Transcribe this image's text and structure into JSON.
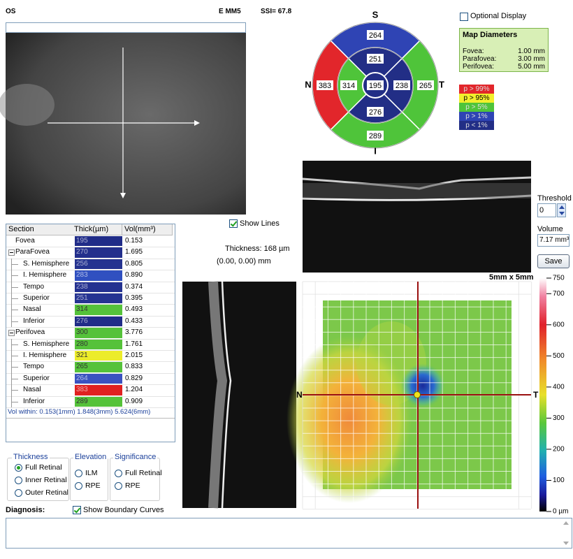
{
  "header": {
    "eye": "OS",
    "scan": "E MM5",
    "ssi": "SSI= 67.8"
  },
  "sector_map": {
    "orientation": [
      "S",
      "N",
      "T",
      "I"
    ],
    "outer": [
      {
        "value": 264,
        "color": "#2f44b4"
      },
      {
        "value": 383,
        "color": "#e2262b"
      },
      {
        "value": 265,
        "color": "#4fc43a"
      },
      {
        "value": 289,
        "color": "#4fc43a"
      }
    ],
    "inner": [
      {
        "value": 251,
        "color": "#222e86"
      },
      {
        "value": 314,
        "color": "#4fc43a"
      },
      {
        "value": 238,
        "color": "#222e86"
      },
      {
        "value": 276,
        "color": "#222e86"
      }
    ],
    "center": {
      "value": 195,
      "color": "#222e86"
    }
  },
  "optional_display": "Optional Display",
  "map_diameters": {
    "title": "Map Diameters",
    "rows": [
      [
        "Fovea:",
        "1.00 mm"
      ],
      [
        "Parafovea:",
        "3.00 mm"
      ],
      [
        "Perifovea:",
        "5.00 mm"
      ]
    ]
  },
  "significance_legend": [
    {
      "label": "p > 99%",
      "color": "#e2262b"
    },
    {
      "label": "p > 95%",
      "color": "#f2ef2c"
    },
    {
      "label": "p > 5%",
      "color": "#4fc43a"
    },
    {
      "label": "p > 1%",
      "color": "#2f44b4"
    },
    {
      "label": "p < 1%",
      "color": "#222e86"
    }
  ],
  "table": {
    "header": [
      "Section",
      "Thick(µm)",
      "Vol(mm³)"
    ],
    "rows": [
      {
        "cells": [
          "Fovea",
          "195",
          "0.153"
        ],
        "color": "#202c88"
      },
      {
        "cells": [
          "ParaFovea",
          "270",
          "1.695"
        ],
        "color": "#232f8c",
        "children": [
          {
            "cells": [
              "S. Hemisphere",
              "256",
              "0.805"
            ],
            "color": "#253390"
          },
          {
            "cells": [
              "I. Hemisphere",
              "283",
              "0.890"
            ],
            "color": "#3050c0"
          },
          {
            "cells": [
              "Tempo",
              "238",
              "0.374"
            ],
            "color": "#243190"
          },
          {
            "cells": [
              "Superior",
              "251",
              "0.395"
            ],
            "color": "#263492"
          },
          {
            "cells": [
              "Nasal",
              "314",
              "0.493"
            ],
            "color": "#55c23a"
          },
          {
            "cells": [
              "Inferior",
              "276",
              "0.433"
            ],
            "color": "#212d88"
          }
        ]
      },
      {
        "cells": [
          "Perifovea",
          "300",
          "3.776"
        ],
        "color": "#55c23a",
        "children": [
          {
            "cells": [
              "S. Hemisphere",
              "280",
              "1.761"
            ],
            "color": "#55c23a"
          },
          {
            "cells": [
              "I. Hemisphere",
              "321",
              "2.015"
            ],
            "color": "#ecec2a"
          },
          {
            "cells": [
              "Tempo",
              "265",
              "0.833"
            ],
            "color": "#55c23a"
          },
          {
            "cells": [
              "Superior",
              "264",
              "0.829"
            ],
            "color": "#3a52c0"
          },
          {
            "cells": [
              "Nasal",
              "383",
              "1.204"
            ],
            "color": "#e02020"
          },
          {
            "cells": [
              "Inferior",
              "289",
              "0.909"
            ],
            "color": "#55c23a"
          }
        ]
      }
    ],
    "footer": "Vol within: 0.153(1mm) 1.848(3mm) 5.624(6mm)"
  },
  "show_lines": "Show Lines",
  "cursor": {
    "thickness": "Thickness: 168 µm",
    "position": "(0.00, 0.00) mm"
  },
  "threshold": {
    "label": "Threshold",
    "value": "0"
  },
  "volume": {
    "label": "Volume",
    "value": "7.17 mm³"
  },
  "save": "Save",
  "thickness_map": {
    "size": "5mm x 5mm",
    "left": "N",
    "right": "T",
    "colorbar": {
      "lim": [
        0,
        750
      ],
      "ticks": [
        750,
        700,
        600,
        500,
        400,
        300,
        200,
        100,
        {
          "value": 0,
          "label": "0 µm"
        }
      ]
    }
  },
  "options": [
    {
      "title": "Thickness",
      "items": [
        "Full Retinal",
        "Inner Retinal",
        "Outer Retinal"
      ],
      "selected": 0
    },
    {
      "title": "Elevation",
      "items": [
        "ILM",
        "RPE"
      ]
    },
    {
      "title": "Significance",
      "items": [
        "Full Retinal",
        "RPE"
      ]
    }
  ],
  "diagnosis": {
    "label": "Diagnosis:",
    "show_boundary": "Show Boundary Curves"
  }
}
